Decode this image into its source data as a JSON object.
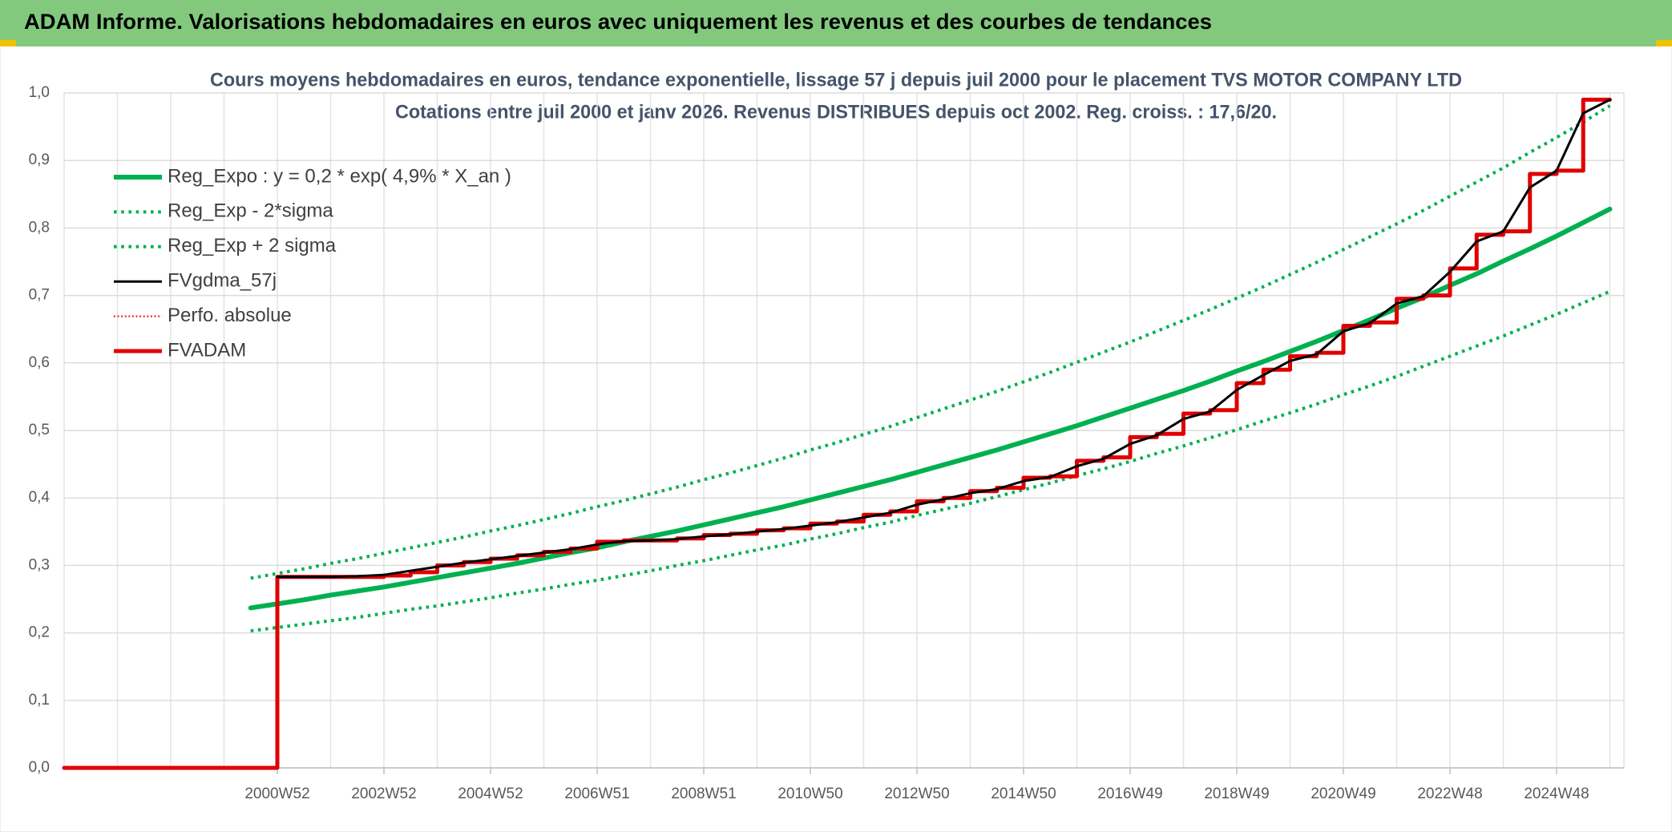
{
  "header": {
    "title": "ADAM Informe. Valorisations hebdomadaires en euros avec uniquement les revenus et des courbes de tendances"
  },
  "chart_data": {
    "type": "line",
    "title": "Cours moyens hebdomadaires en euros, tendance exponentielle, lissage 57 j depuis juil 2000 pour le placement TVS MOTOR COMPANY LTD",
    "subtitle": "Cotations entre juil 2000 et janv 2026. Revenus DISTRIBUES depuis oct 2002. Reg. croiss. : 17,6/20.",
    "categories": [
      null,
      null,
      null,
      null,
      null,
      null,
      null,
      null,
      "2000W52",
      null,
      null,
      null,
      "2002W52",
      null,
      null,
      null,
      "2004W52",
      null,
      null,
      null,
      "2006W51",
      null,
      null,
      null,
      "2008W51",
      null,
      null,
      null,
      "2010W50",
      null,
      null,
      null,
      "2012W50",
      null,
      null,
      null,
      "2014W50",
      null,
      null,
      null,
      "2016W49",
      null,
      null,
      null,
      "2018W49",
      null,
      null,
      null,
      "2020W49",
      null,
      null,
      null,
      "2022W48",
      null,
      null,
      null,
      "2024W48",
      null,
      null
    ],
    "ylim": [
      0,
      1
    ],
    "yticks": [
      {
        "value": 0,
        "label": "0,0"
      },
      {
        "value": 0.1,
        "label": "0,1"
      },
      {
        "value": 0.2,
        "label": "0,2"
      },
      {
        "value": 0.3,
        "label": "0,3"
      },
      {
        "value": 0.4,
        "label": "0,4"
      },
      {
        "value": 0.5,
        "label": "0,5"
      },
      {
        "value": 0.6,
        "label": "0,6"
      },
      {
        "value": 0.7,
        "label": "0,7"
      },
      {
        "value": 0.8,
        "label": "0,8"
      },
      {
        "value": 0.9,
        "label": "0,9"
      },
      {
        "value": 1,
        "label": "1,0"
      }
    ],
    "grid": true,
    "legend": "upper left",
    "series": [
      {
        "name": "Reg_Expo : y = 0,2 * exp( 4,9% *  X_an )",
        "color": "#00b050",
        "style": "solid",
        "width": 6,
        "values": [
          null,
          null,
          null,
          null,
          null,
          null,
          null,
          0.237,
          0.243,
          0.249,
          0.256,
          0.262,
          0.268,
          0.275,
          0.282,
          0.289,
          0.296,
          0.303,
          0.311,
          0.319,
          0.326,
          0.335,
          0.343,
          0.351,
          0.36,
          0.369,
          0.378,
          0.387,
          0.397,
          0.407,
          0.417,
          0.427,
          0.438,
          0.449,
          0.46,
          0.471,
          0.483,
          0.495,
          0.507,
          0.52,
          0.533,
          0.546,
          0.559,
          0.573,
          0.588,
          0.602,
          0.617,
          0.632,
          0.648,
          0.664,
          0.681,
          0.697,
          0.715,
          0.732,
          0.751,
          0.769,
          0.788,
          0.808,
          0.828
        ]
      },
      {
        "name": "Reg_Exp - 2*sigma",
        "color": "#00b050",
        "style": "dotted",
        "width": 4,
        "values": [
          null,
          null,
          null,
          null,
          null,
          null,
          null,
          0.203,
          0.208,
          0.213,
          0.218,
          0.223,
          0.229,
          0.235,
          0.24,
          0.246,
          0.252,
          0.259,
          0.265,
          0.272,
          0.278,
          0.285,
          0.292,
          0.3,
          0.307,
          0.315,
          0.323,
          0.33,
          0.339,
          0.347,
          0.356,
          0.364,
          0.374,
          0.383,
          0.392,
          0.402,
          0.412,
          0.422,
          0.433,
          0.443,
          0.454,
          0.466,
          0.477,
          0.489,
          0.501,
          0.514,
          0.526,
          0.539,
          0.553,
          0.566,
          0.58,
          0.595,
          0.61,
          0.625,
          0.64,
          0.656,
          0.672,
          0.689,
          0.706
        ]
      },
      {
        "name": "Reg_Exp + 2 sigma",
        "color": "#00b050",
        "style": "dotted",
        "width": 4,
        "values": [
          null,
          null,
          null,
          null,
          null,
          null,
          null,
          0.281,
          0.288,
          0.295,
          0.303,
          0.31,
          0.318,
          0.326,
          0.334,
          0.342,
          0.351,
          0.359,
          0.368,
          0.377,
          0.387,
          0.396,
          0.406,
          0.416,
          0.427,
          0.437,
          0.448,
          0.459,
          0.471,
          0.482,
          0.494,
          0.506,
          0.519,
          0.532,
          0.545,
          0.558,
          0.572,
          0.586,
          0.601,
          0.616,
          0.631,
          0.647,
          0.663,
          0.679,
          0.696,
          0.713,
          0.731,
          0.749,
          0.768,
          0.787,
          0.806,
          0.826,
          0.847,
          0.868,
          0.889,
          0.912,
          0.934,
          0.957,
          0.981
        ]
      },
      {
        "name": "FVgdma_57j",
        "color": "#000000",
        "style": "solid",
        "width": 3,
        "values": [
          null,
          null,
          null,
          null,
          null,
          null,
          null,
          null,
          0.283,
          0.283,
          0.283,
          0.284,
          0.286,
          0.292,
          0.298,
          0.304,
          0.309,
          0.314,
          0.319,
          0.324,
          0.331,
          0.336,
          0.337,
          0.339,
          0.343,
          0.346,
          0.35,
          0.354,
          0.359,
          0.364,
          0.371,
          0.378,
          0.39,
          0.398,
          0.407,
          0.413,
          0.425,
          0.431,
          0.447,
          0.458,
          0.48,
          0.493,
          0.517,
          0.528,
          0.56,
          0.582,
          0.603,
          0.613,
          0.647,
          0.659,
          0.688,
          0.699,
          0.735,
          0.78,
          0.795,
          0.86,
          0.885,
          0.97,
          0.99
        ]
      },
      {
        "name": "Perfo. absolue",
        "color": "#e00000",
        "style": "dotted",
        "width": 2,
        "step": true,
        "values": [
          0,
          0,
          0,
          0,
          0,
          0,
          0,
          0,
          0.283,
          0.283,
          0.283,
          0.283,
          0.285,
          0.29,
          0.3,
          0.305,
          0.31,
          0.315,
          0.32,
          0.325,
          0.335,
          0.337,
          0.337,
          0.34,
          0.345,
          0.347,
          0.352,
          0.355,
          0.362,
          0.365,
          0.375,
          0.38,
          0.395,
          0.4,
          0.41,
          0.415,
          0.43,
          0.432,
          0.455,
          0.46,
          0.49,
          0.495,
          0.525,
          0.53,
          0.57,
          0.59,
          0.61,
          0.615,
          0.655,
          0.66,
          0.695,
          0.7,
          0.74,
          0.79,
          0.795,
          0.88,
          0.885,
          0.99,
          0.99
        ]
      },
      {
        "name": "FVADAM",
        "color": "#e00000",
        "style": "solid",
        "width": 5,
        "step": true,
        "values": [
          0,
          0,
          0,
          0,
          0,
          0,
          0,
          0,
          0.283,
          0.283,
          0.283,
          0.283,
          0.285,
          0.29,
          0.3,
          0.305,
          0.31,
          0.315,
          0.32,
          0.325,
          0.335,
          0.337,
          0.337,
          0.34,
          0.345,
          0.347,
          0.352,
          0.355,
          0.362,
          0.365,
          0.375,
          0.38,
          0.395,
          0.4,
          0.41,
          0.415,
          0.43,
          0.432,
          0.455,
          0.46,
          0.49,
          0.495,
          0.525,
          0.53,
          0.57,
          0.59,
          0.61,
          0.615,
          0.655,
          0.66,
          0.695,
          0.7,
          0.74,
          0.79,
          0.795,
          0.88,
          0.885,
          0.99,
          0.99
        ]
      }
    ]
  }
}
